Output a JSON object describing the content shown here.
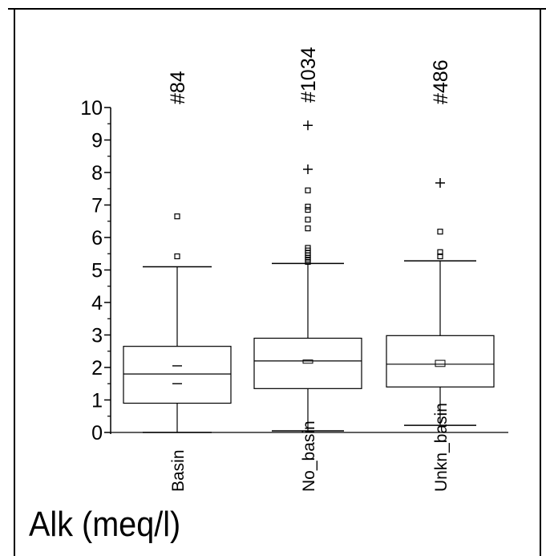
{
  "chart_data": {
    "type": "box",
    "title": "Alk (meq/l)",
    "xlabel": "",
    "ylabel": "",
    "ylim": [
      0,
      10
    ],
    "y_ticks": [
      "0",
      "1",
      "2",
      "3",
      "4",
      "5",
      "6",
      "7",
      "8",
      "9",
      "10"
    ],
    "categories": [
      "Basin",
      "No_basin",
      "Unkn_basin"
    ],
    "count_labels": [
      "#84",
      "#1034",
      "#486"
    ],
    "boxes": [
      {
        "category": "Basin",
        "whisker_low": 0.0,
        "q1": 0.9,
        "median": 1.8,
        "q3": 2.65,
        "whisker_high": 5.1,
        "mean_ci": [
          1.5,
          2.05
        ],
        "outliers": [
          5.42,
          6.65
        ],
        "far_outliers": []
      },
      {
        "category": "No_basin",
        "whisker_low": 0.05,
        "q1": 1.35,
        "median": 2.2,
        "q3": 2.9,
        "whisker_high": 5.2,
        "mean_ci": [
          2.13,
          2.23
        ],
        "outliers": [
          5.25,
          5.32,
          5.38,
          5.45,
          5.52,
          5.6,
          5.68,
          6.28,
          6.55,
          6.85,
          6.95,
          7.45
        ],
        "far_outliers": [
          8.1,
          9.45
        ]
      },
      {
        "category": "Unkn_basin",
        "whisker_low": 0.22,
        "q1": 1.4,
        "median": 2.1,
        "q3": 2.98,
        "whisker_high": 5.28,
        "mean_ci": [
          2.03,
          2.22
        ],
        "outliers": [
          5.42,
          5.55,
          6.18
        ],
        "far_outliers": [
          7.68
        ]
      }
    ],
    "grid": false,
    "legend": "none"
  }
}
